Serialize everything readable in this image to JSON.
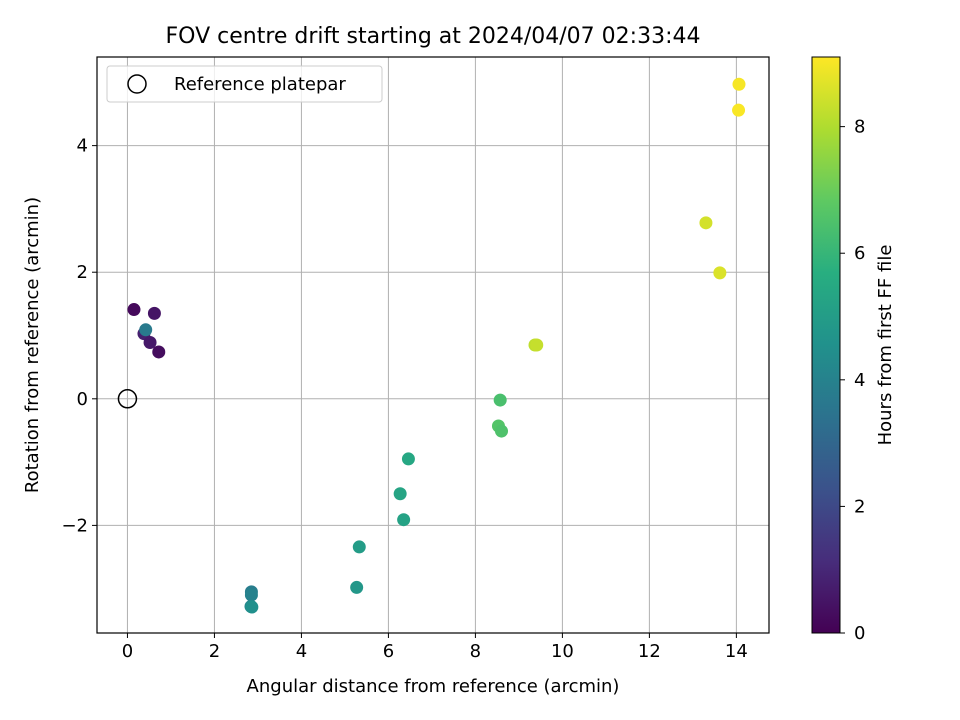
{
  "chart_data": {
    "type": "scatter",
    "title": "FOV centre drift starting at 2024/04/07 02:33:44",
    "xlabel": "Angular distance from reference (arcmin)",
    "ylabel": "Rotation from reference (arcmin)",
    "xlim": [
      -0.7,
      14.75
    ],
    "ylim": [
      -3.7,
      5.4
    ],
    "xticks": [
      0,
      2,
      4,
      6,
      8,
      10,
      12,
      14
    ],
    "yticks": [
      -2,
      0,
      2,
      4
    ],
    "xtick_labels": [
      "0",
      "2",
      "4",
      "6",
      "8",
      "10",
      "12",
      "14"
    ],
    "ytick_labels": [
      "−2",
      "0",
      "2",
      "4"
    ],
    "grid": true,
    "legend": {
      "placement": "upper-left",
      "entries": [
        "Reference platepar"
      ]
    },
    "reference_point": {
      "x": 0,
      "y": 0,
      "label": "Reference platepar"
    },
    "colorbar": {
      "label": "Hours from first FF file",
      "colormap": "viridis",
      "range": [
        0,
        9.1
      ],
      "ticks": [
        0,
        2,
        4,
        6,
        8
      ],
      "tick_labels": [
        "0",
        "2",
        "4",
        "6",
        "8"
      ]
    },
    "points": [
      {
        "x": 0.15,
        "y": 1.41,
        "hours": 0.2
      },
      {
        "x": 0.62,
        "y": 1.35,
        "hours": 0.5
      },
      {
        "x": 0.38,
        "y": 1.03,
        "hours": 0.8
      },
      {
        "x": 0.52,
        "y": 0.89,
        "hours": 0.6
      },
      {
        "x": 0.72,
        "y": 0.74,
        "hours": 0.3
      },
      {
        "x": 0.42,
        "y": 1.09,
        "hours": 3.7
      },
      {
        "x": 2.85,
        "y": -3.05,
        "hours": 3.8
      },
      {
        "x": 2.85,
        "y": -3.1,
        "hours": 4.0
      },
      {
        "x": 2.84,
        "y": -3.28,
        "hours": 4.2
      },
      {
        "x": 2.86,
        "y": -3.29,
        "hours": 4.5
      },
      {
        "x": 5.27,
        "y": -2.98,
        "hours": 4.8
      },
      {
        "x": 5.33,
        "y": -2.34,
        "hours": 5.0
      },
      {
        "x": 6.35,
        "y": -1.91,
        "hours": 5.2
      },
      {
        "x": 6.27,
        "y": -1.5,
        "hours": 5.3
      },
      {
        "x": 6.46,
        "y": -0.95,
        "hours": 5.4
      },
      {
        "x": 8.57,
        "y": -0.02,
        "hours": 6.4
      },
      {
        "x": 8.53,
        "y": -0.43,
        "hours": 6.6
      },
      {
        "x": 8.6,
        "y": -0.51,
        "hours": 6.5
      },
      {
        "x": 9.37,
        "y": 0.85,
        "hours": 8.2
      },
      {
        "x": 9.41,
        "y": 0.85,
        "hours": 8.3
      },
      {
        "x": 13.3,
        "y": 2.78,
        "hours": 8.5
      },
      {
        "x": 13.62,
        "y": 1.99,
        "hours": 8.6
      },
      {
        "x": 14.06,
        "y": 4.97,
        "hours": 9.0
      },
      {
        "x": 14.05,
        "y": 4.56,
        "hours": 9.05
      }
    ]
  }
}
